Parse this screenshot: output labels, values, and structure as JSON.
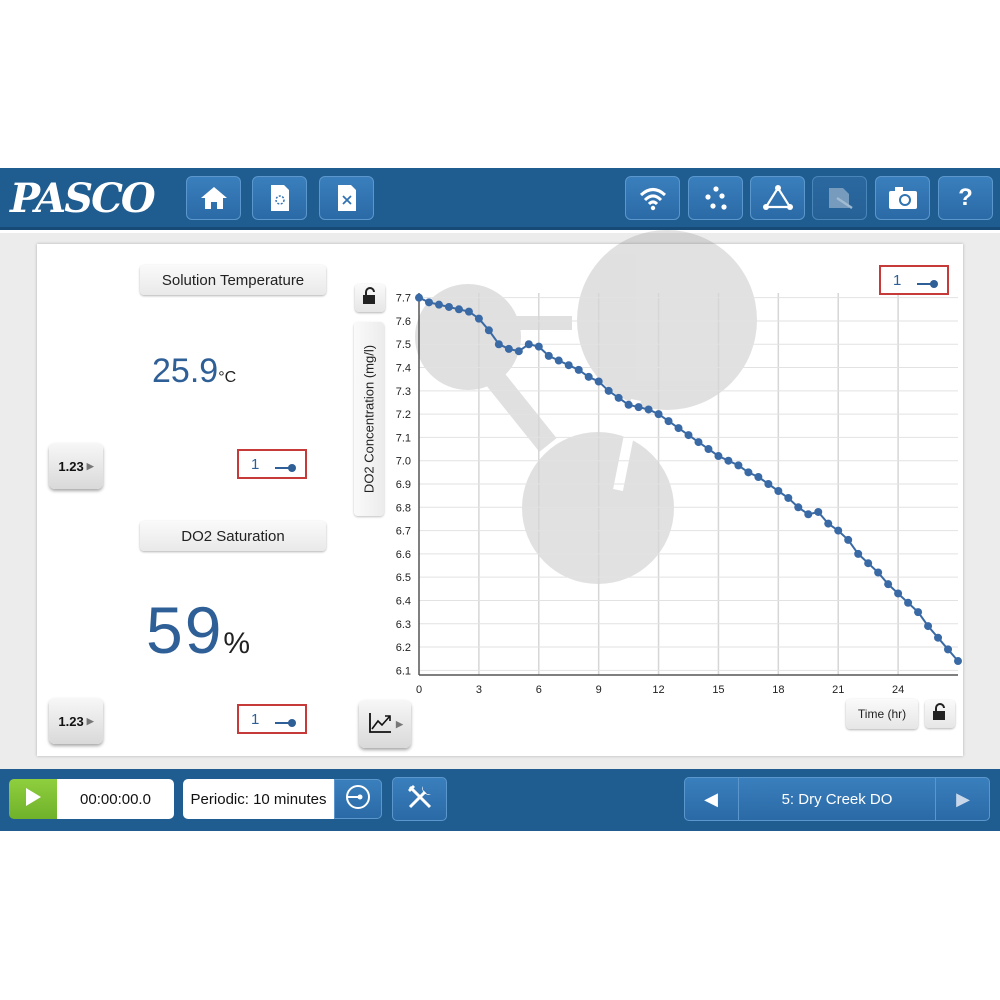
{
  "app": {
    "logo": "PASCO"
  },
  "toolbar": {
    "items": [
      {
        "name": "home-icon"
      },
      {
        "name": "new-file-icon"
      },
      {
        "name": "close-file-icon"
      },
      {
        "name": "wireless-icon"
      },
      {
        "name": "data-points-icon"
      },
      {
        "name": "analysis-icon"
      },
      {
        "name": "annotate-icon"
      },
      {
        "name": "camera-icon"
      },
      {
        "name": "help-icon",
        "glyph": "?"
      }
    ]
  },
  "digits": [
    {
      "title": "Solution Temperature",
      "value": "25.9",
      "unit": "°C",
      "run": "1",
      "button": "1.23"
    },
    {
      "title": "DO2 Saturation",
      "value": "59",
      "unit": "%",
      "run": "1",
      "button": "1.23"
    }
  ],
  "graph": {
    "run": "1",
    "y_axis_label": "DO2 Concentration (mg/l)",
    "x_axis_label": "Time (hr)"
  },
  "chart_data": {
    "type": "scatter",
    "xlabel": "Time (hr)",
    "ylabel": "DO2 Concentration (mg/l)",
    "xlim": [
      0,
      27
    ],
    "ylim": [
      6.08,
      7.72
    ],
    "x_ticks": [
      0,
      3,
      6,
      9,
      12,
      15,
      18,
      21,
      24
    ],
    "y_ticks": [
      6.1,
      6.2,
      6.3,
      6.4,
      6.5,
      6.6,
      6.7,
      6.8,
      6.9,
      7.0,
      7.1,
      7.2,
      7.3,
      7.4,
      7.5,
      7.6,
      7.7
    ],
    "grid": true,
    "series": [
      {
        "name": "1",
        "color": "#3a6aa5",
        "x": [
          0,
          0.5,
          1,
          1.5,
          2,
          2.5,
          3,
          3.5,
          4,
          4.5,
          5,
          5.5,
          6,
          6.5,
          7,
          7.5,
          8,
          8.5,
          9,
          9.5,
          10,
          10.5,
          11,
          11.5,
          12,
          12.5,
          13,
          13.5,
          14,
          14.5,
          15,
          15.5,
          16,
          16.5,
          17,
          17.5,
          18,
          18.5,
          19,
          19.5,
          20,
          20.5,
          21,
          21.5,
          22,
          22.5,
          23,
          23.5,
          24,
          24.5,
          25,
          25.5,
          26,
          26.5,
          27
        ],
        "y": [
          7.7,
          7.68,
          7.67,
          7.66,
          7.65,
          7.64,
          7.61,
          7.56,
          7.5,
          7.48,
          7.47,
          7.5,
          7.49,
          7.45,
          7.43,
          7.41,
          7.39,
          7.36,
          7.34,
          7.3,
          7.27,
          7.24,
          7.23,
          7.22,
          7.2,
          7.17,
          7.14,
          7.11,
          7.08,
          7.05,
          7.02,
          7.0,
          6.98,
          6.95,
          6.93,
          6.9,
          6.87,
          6.84,
          6.8,
          6.77,
          6.78,
          6.73,
          6.7,
          6.66,
          6.6,
          6.56,
          6.52,
          6.47,
          6.43,
          6.39,
          6.35,
          6.29,
          6.24,
          6.19,
          6.14
        ]
      }
    ]
  },
  "controls": {
    "timer": "00:00:00.0",
    "sample_rate": "Periodic: 10 minutes"
  },
  "page_nav": {
    "title": "5: Dry Creek DO",
    "prev_glyph": "◀",
    "next_glyph": "▶"
  }
}
